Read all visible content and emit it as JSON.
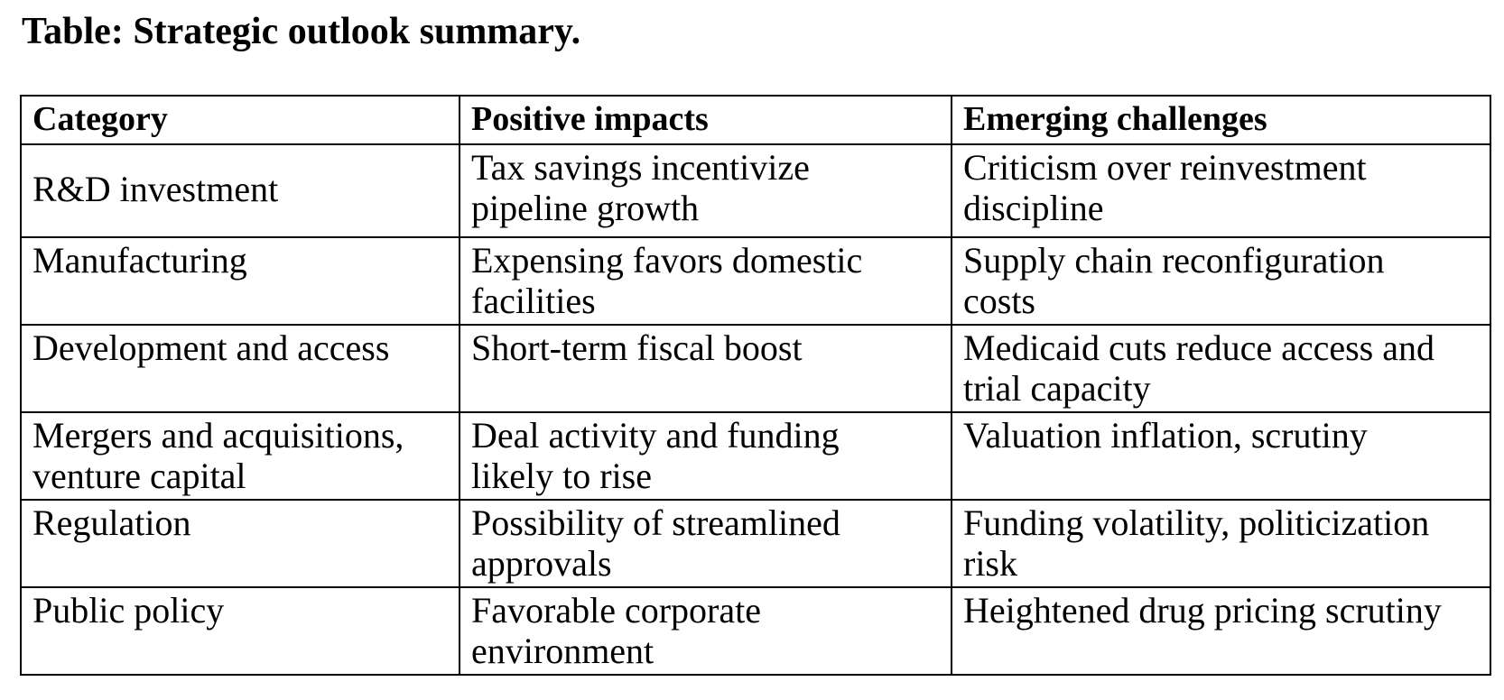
{
  "doc": {
    "title": "Table: Strategic outlook summary."
  },
  "table": {
    "headers": {
      "category": "Category",
      "positive": "Positive impacts",
      "challenges": "Emerging challenges"
    },
    "rows": [
      {
        "category": "R&D investment",
        "positive": "Tax savings incentivize\npipeline growth",
        "challenges": "Criticism over reinvestment\ndiscipline"
      },
      {
        "category": "Manufacturing",
        "positive": "Expensing favors domestic\nfacilities",
        "challenges": "Supply chain reconfiguration\ncosts"
      },
      {
        "category": "Development and access",
        "positive": "Short-term fiscal boost",
        "challenges": "Medicaid cuts reduce access and\ntrial capacity"
      },
      {
        "category": "Mergers and acquisitions,\nventure capital",
        "positive": "Deal activity and funding\nlikely to rise",
        "challenges": "Valuation inflation, scrutiny"
      },
      {
        "category": "Regulation",
        "positive": "Possibility of streamlined\napprovals",
        "challenges": "Funding volatility, politicization\nrisk"
      },
      {
        "category": "Public policy",
        "positive": "Favorable corporate\nenvironment",
        "challenges": "Heightened drug pricing scrutiny"
      }
    ]
  },
  "colors": {
    "text": "#000000",
    "background": "#ffffff",
    "border": "#000000"
  }
}
